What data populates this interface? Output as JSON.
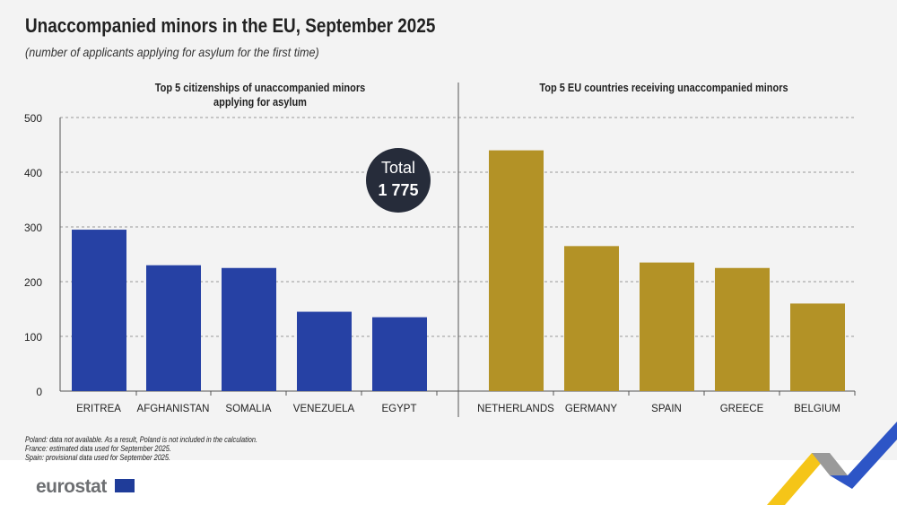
{
  "title": "Unaccompanied minors in the EU, September 2025",
  "subtitle": "(number of applicants applying for asylum for the first time)",
  "total_badge": {
    "label": "Total",
    "value": "1 775"
  },
  "notes": [
    "Poland: data not available. As a result, Poland is not included in the calculation.",
    "France: estimated  data used for September 2025.",
    "Spain: provisional data used for September 2025."
  ],
  "logo": "eurostat",
  "chart_data": [
    {
      "type": "bar",
      "title": "Top 5 citizenships of unaccompanied minors applying for asylum",
      "categories": [
        "ERITREA",
        "AFGHANISTAN",
        "SOMALIA",
        "VENEZUELA",
        "EGYPT"
      ],
      "values": [
        295,
        230,
        225,
        145,
        135
      ],
      "ylim": [
        0,
        500
      ],
      "yticks": [
        0,
        100,
        200,
        300,
        400,
        500
      ],
      "grid": true,
      "color": "#2641a4"
    },
    {
      "type": "bar",
      "title": "Top 5 EU countries receiving unaccompanied minors",
      "categories": [
        "NETHERLANDS",
        "GERMANY",
        "SPAIN",
        "GREECE",
        "BELGIUM"
      ],
      "values": [
        440,
        265,
        235,
        225,
        160
      ],
      "ylim": [
        0,
        500
      ],
      "grid": true,
      "color": "#b39226"
    }
  ]
}
